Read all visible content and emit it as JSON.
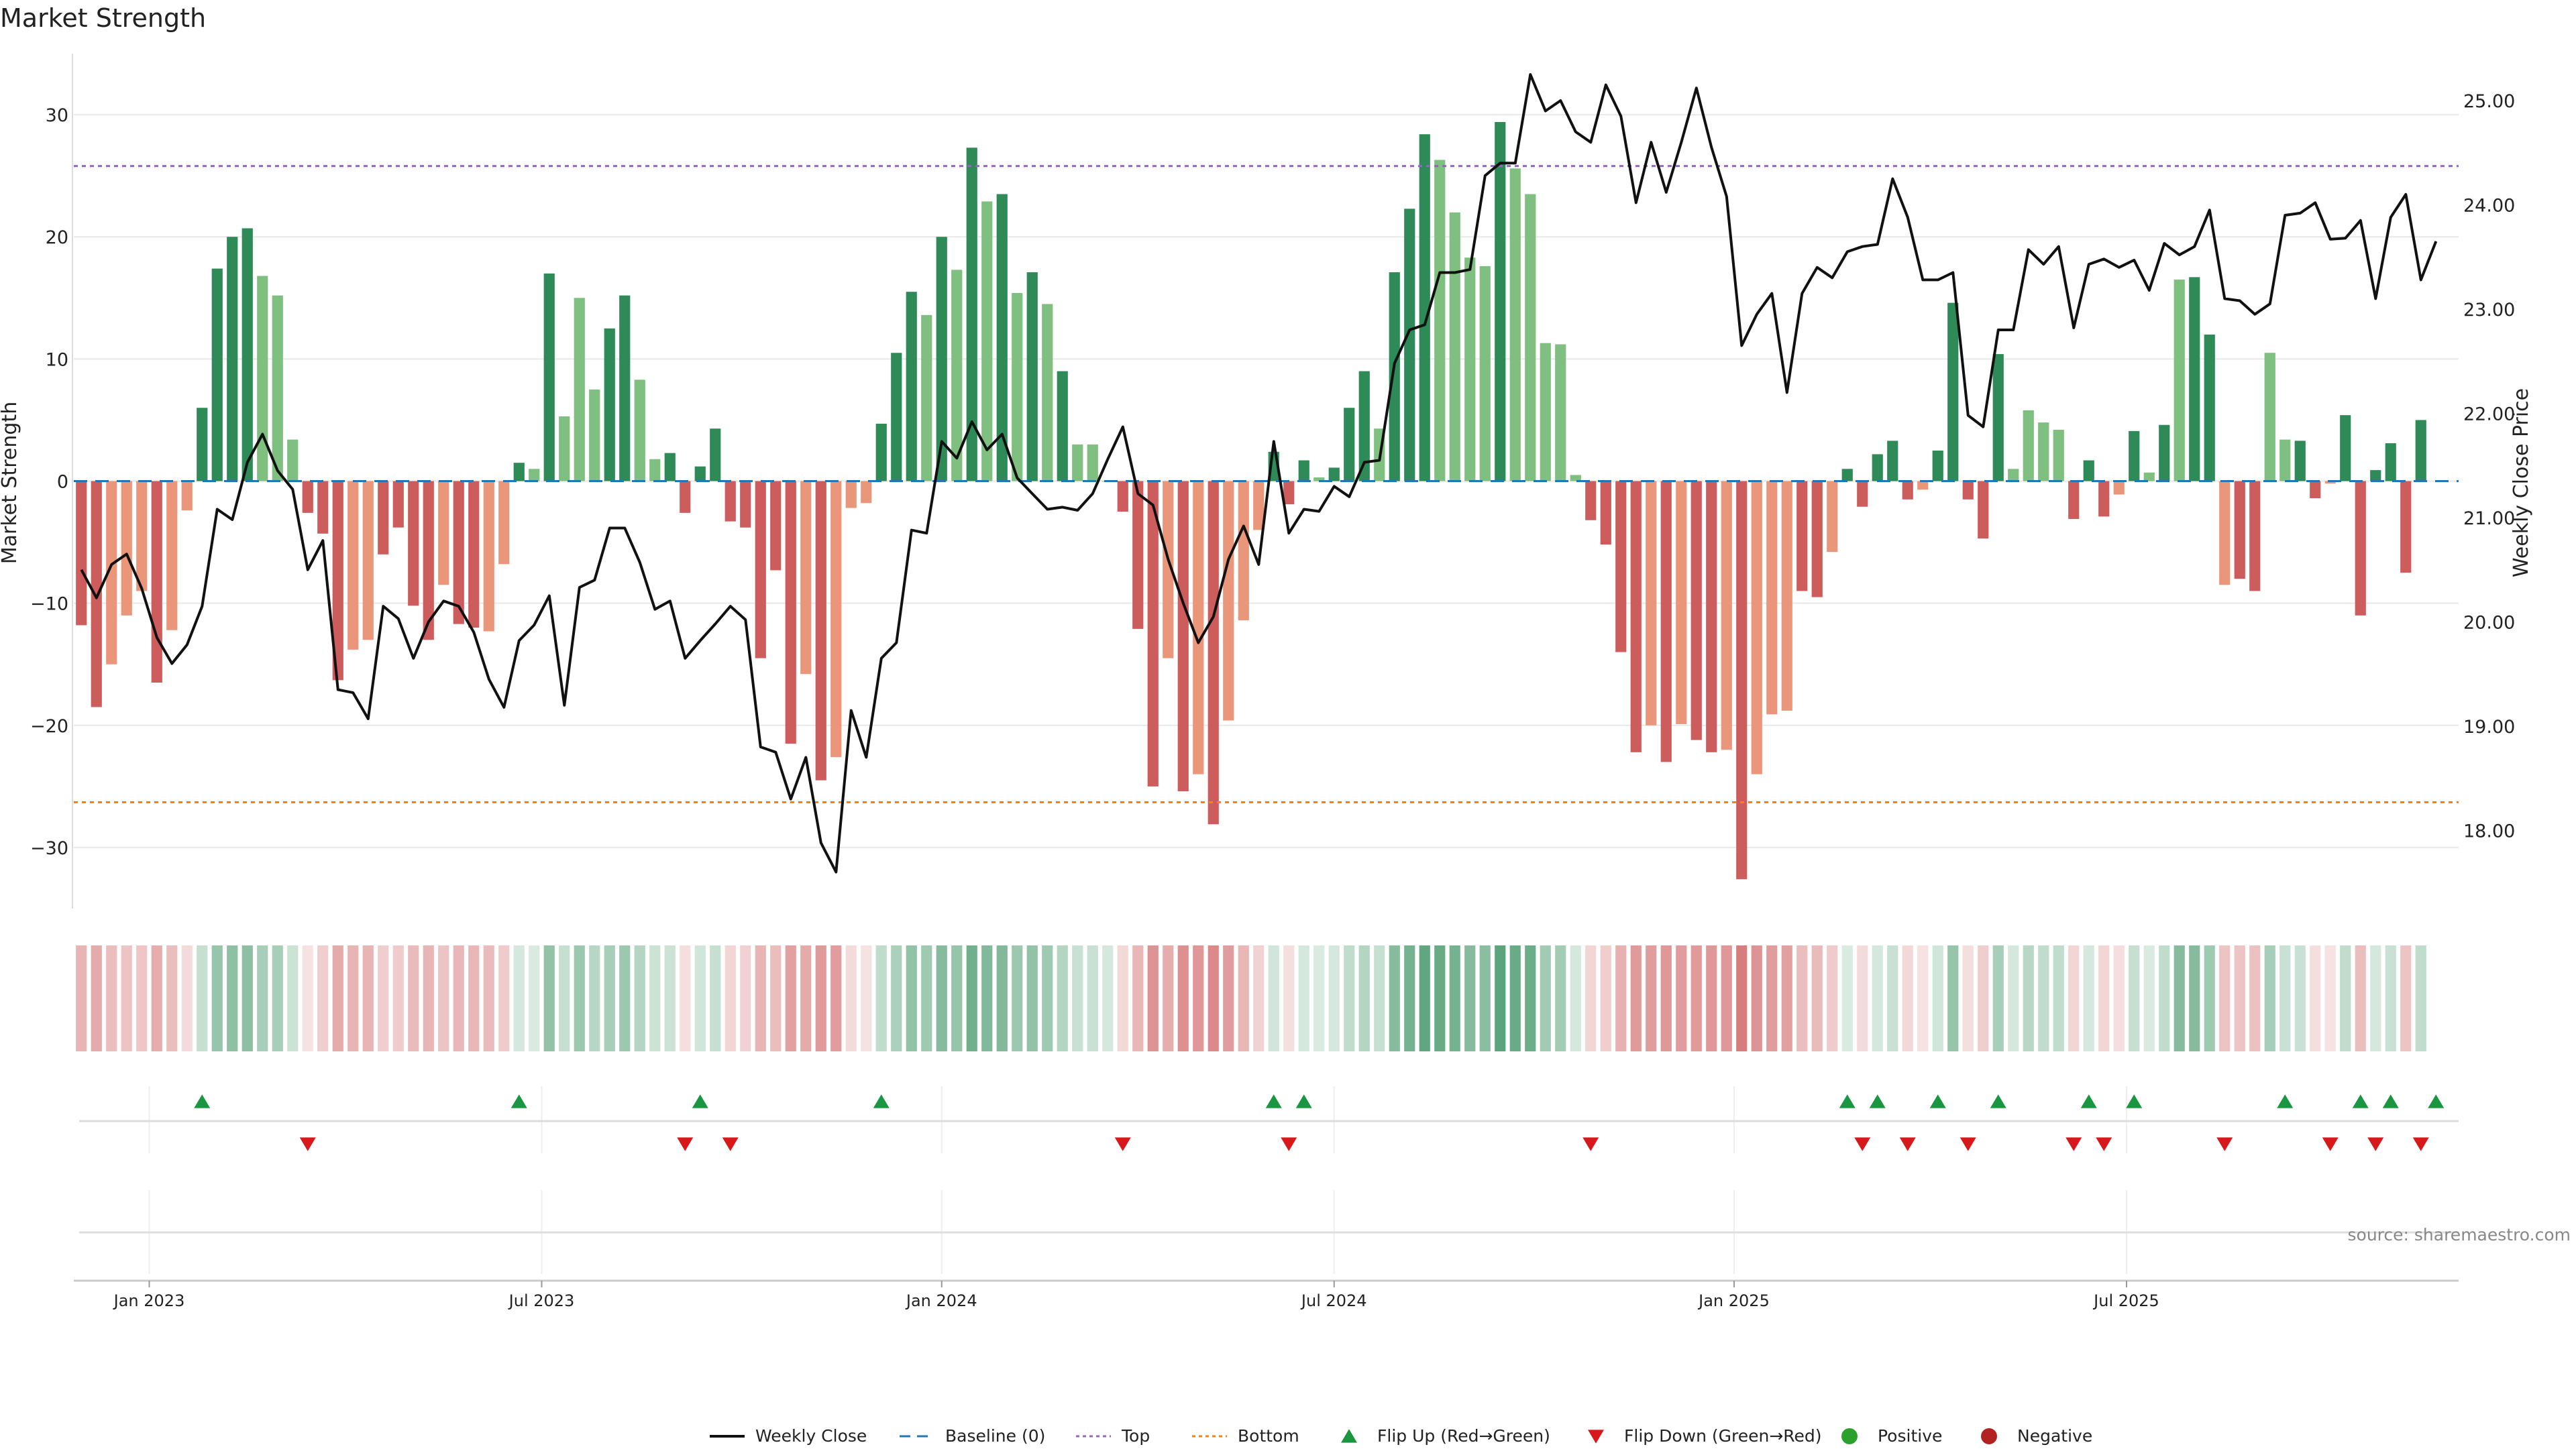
{
  "title": "Market Strength",
  "source": "source: sharemaestro.com",
  "colors": {
    "strong_green": "#2e8b57",
    "light_green": "#7fbf7f",
    "strong_red": "#cd5c5c",
    "light_red": "#e9967a",
    "price_line": "#111111",
    "baseline": "#1f77b4",
    "top": "#9467bd",
    "bottom": "#ff7f0e",
    "flip_up": "#1a9641",
    "flip_down": "#d7191c",
    "positive_dot": "#2ca02c",
    "negative_dot": "#b22222"
  },
  "chart_data": {
    "type": "bar",
    "title": "Market Strength",
    "ylabel": "Market Strength",
    "y2label": "Weekly Close Price",
    "ylim": [
      -35,
      35
    ],
    "y2lim": [
      17.25,
      25.45
    ],
    "yticks": [
      30,
      20,
      10,
      0,
      -10,
      -20,
      -30
    ],
    "yticklabels": [
      "30",
      "20",
      "10",
      "0",
      "−10",
      "−20",
      "−30"
    ],
    "y2ticks": [
      25,
      24,
      23,
      22,
      21,
      20,
      19,
      18
    ],
    "y2ticklabels": [
      "25.00",
      "24.00",
      "23.00",
      "22.00",
      "21.00",
      "20.00",
      "19.00",
      "18.00"
    ],
    "x_start": "2022-11-28",
    "week_count": 158,
    "x_ticks": [
      {
        "week": 5,
        "label": "Jan 2023"
      },
      {
        "week": 31,
        "label": "Jul 2023"
      },
      {
        "week": 57.5,
        "label": "Jan 2024"
      },
      {
        "week": 83.5,
        "label": "Jul 2024"
      },
      {
        "week": 110,
        "label": "Jan 2025"
      },
      {
        "week": 136,
        "label": "Jul 2025"
      }
    ],
    "top_level": 25.8,
    "bottom_level": -26.3,
    "strength": [
      -11.8,
      -18.5,
      -15,
      -11,
      -9,
      -16.5,
      -12.2,
      -2.4,
      6,
      17.4,
      20,
      20.7,
      16.8,
      15.2,
      3.4,
      -2.6,
      -4.3,
      -16.3,
      -13.8,
      -13,
      -6,
      -3.8,
      -10.2,
      -13,
      -8.5,
      -11.7,
      -12,
      -12.3,
      -6.8,
      1.5,
      1,
      17,
      5.3,
      15,
      7.5,
      12.5,
      15.2,
      8.3,
      1.8,
      2.3,
      -2.6,
      1.2,
      4.3,
      -3.3,
      -3.8,
      -14.5,
      -7.3,
      -21.5,
      -15.8,
      -24.5,
      -22.6,
      -2.2,
      -1.8,
      4.7,
      10.5,
      15.5,
      13.6,
      20,
      17.3,
      27.3,
      22.9,
      23.5,
      15.4,
      17.1,
      14.5,
      9,
      3,
      3,
      0,
      -2.5,
      -12.1,
      -25,
      -14.5,
      -25.4,
      -24,
      -28.1,
      -19.6,
      -11.4,
      -4,
      2.4,
      -1.9,
      1.7,
      0.3,
      1.1,
      6,
      9,
      4.3,
      17.1,
      22.3,
      28.4,
      26.3,
      22,
      18.3,
      17.6,
      29.4,
      25.6,
      23.5,
      11.3,
      11.2,
      0.5,
      -3.2,
      -5.2,
      -14,
      -22.2,
      -20,
      -23,
      -19.9,
      -21.2,
      -22.2,
      -22,
      -32.6,
      -24,
      -19.1,
      -18.8,
      -9,
      -9.5,
      -5.8,
      1,
      -2.1,
      2.2,
      3.3,
      -1.5,
      -0.7,
      2.5,
      14.6,
      -1.5,
      -4.7,
      10.4,
      1,
      5.8,
      4.8,
      4.2,
      -3.1,
      1.7,
      -2.9,
      -1.1,
      4.1,
      0.7,
      4.6,
      16.5,
      16.7,
      12,
      -8.5,
      -8,
      -9,
      10.5,
      3.4,
      3.3,
      -1.4,
      -0.2,
      5.4,
      -11,
      0.9,
      3.1,
      -7.5,
      5
    ],
    "strength_shade": [
      "strong",
      "strong",
      "light",
      "light",
      "light",
      "strong",
      "light",
      "light",
      "strong",
      "strong",
      "strong",
      "strong",
      "light",
      "light",
      "light",
      "strong",
      "strong",
      "strong",
      "light",
      "light",
      "strong",
      "strong",
      "strong",
      "strong",
      "light",
      "strong",
      "strong",
      "light",
      "light",
      "strong",
      "light",
      "strong",
      "light",
      "light",
      "light",
      "strong",
      "strong",
      "light",
      "light",
      "strong",
      "strong",
      "strong",
      "strong",
      "strong",
      "strong",
      "strong",
      "strong",
      "strong",
      "light",
      "strong",
      "light",
      "light",
      "light",
      "strong",
      "strong",
      "strong",
      "light",
      "strong",
      "light",
      "strong",
      "light",
      "strong",
      "light",
      "strong",
      "light",
      "strong",
      "light",
      "light",
      "light",
      "strong",
      "strong",
      "strong",
      "light",
      "strong",
      "light",
      "strong",
      "light",
      "light",
      "light",
      "strong",
      "strong",
      "strong",
      "light",
      "strong",
      "strong",
      "strong",
      "light",
      "strong",
      "strong",
      "strong",
      "light",
      "light",
      "light",
      "light",
      "strong",
      "light",
      "light",
      "light",
      "light",
      "light",
      "strong",
      "strong",
      "strong",
      "strong",
      "light",
      "strong",
      "light",
      "strong",
      "strong",
      "light",
      "strong",
      "light",
      "light",
      "light",
      "strong",
      "strong",
      "light",
      "strong",
      "strong",
      "strong",
      "strong",
      "strong",
      "light",
      "strong",
      "strong",
      "strong",
      "strong",
      "strong",
      "light",
      "light",
      "light",
      "light",
      "strong",
      "strong",
      "strong",
      "light",
      "strong",
      "light",
      "strong",
      "light",
      "strong",
      "strong",
      "light",
      "strong",
      "strong",
      "light",
      "light",
      "strong",
      "strong",
      "light",
      "strong",
      "strong",
      "strong",
      "strong",
      "strong",
      "strong",
      "strong"
    ],
    "price": [
      20.5,
      20.23,
      20.55,
      20.65,
      20.32,
      19.85,
      19.6,
      19.78,
      20.15,
      21.08,
      20.98,
      21.53,
      21.8,
      21.45,
      21.27,
      20.5,
      20.78,
      19.35,
      19.32,
      19.07,
      20.15,
      20.03,
      19.65,
      20,
      20.2,
      20.15,
      19.9,
      19.45,
      19.18,
      19.82,
      19.97,
      20.25,
      19.2,
      20.33,
      20.4,
      20.9,
      20.9,
      20.57,
      20.12,
      20.2,
      19.65,
      19.82,
      19.98,
      20.15,
      20.02,
      18.8,
      18.75,
      18.3,
      18.7,
      17.88,
      17.6,
      19.15,
      18.7,
      19.65,
      19.8,
      20.88,
      20.85,
      21.73,
      21.57,
      21.92,
      21.65,
      21.8,
      21.38,
      21.23,
      21.08,
      21.1,
      21.07,
      21.23,
      21.56,
      21.87,
      21.23,
      21.12,
      20.6,
      20.18,
      19.8,
      20.05,
      20.6,
      20.92,
      20.55,
      21.73,
      20.85,
      21.08,
      21.06,
      21.3,
      21.2,
      21.53,
      21.55,
      22.48,
      22.8,
      22.85,
      23.35,
      23.35,
      23.38,
      24.28,
      24.4,
      24.4,
      25.25,
      24.9,
      25,
      24.7,
      24.6,
      25.15,
      24.85,
      24.02,
      24.6,
      24.12,
      24.6,
      25.12,
      24.55,
      24.08,
      22.65,
      22.95,
      23.15,
      22.2,
      23.15,
      23.4,
      23.3,
      23.55,
      23.6,
      23.62,
      24.25,
      23.88,
      23.28,
      23.28,
      23.35,
      21.98,
      21.87,
      22.8,
      22.8,
      23.57,
      23.43,
      23.6,
      22.82,
      23.43,
      23.48,
      23.4,
      23.47,
      23.18,
      23.63,
      23.52,
      23.6,
      23.95,
      23.1,
      23.08,
      22.95,
      23.05,
      23.9,
      23.92,
      24.02,
      23.67,
      23.68,
      23.85,
      23.1,
      23.88,
      24.1,
      23.28,
      23.65
    ],
    "heat_levels": [
      0.45,
      0.52,
      0.4,
      0.36,
      0.35,
      0.5,
      0.4,
      0.22,
      0.28,
      0.5,
      0.54,
      0.55,
      0.42,
      0.42,
      0.25,
      0.18,
      0.3,
      0.52,
      0.45,
      0.45,
      0.3,
      0.32,
      0.42,
      0.45,
      0.36,
      0.44,
      0.44,
      0.42,
      0.32,
      0.2,
      0.18,
      0.52,
      0.28,
      0.48,
      0.35,
      0.42,
      0.48,
      0.36,
      0.25,
      0.25,
      0.2,
      0.22,
      0.28,
      0.26,
      0.28,
      0.46,
      0.4,
      0.58,
      0.52,
      0.62,
      0.6,
      0.22,
      0.18,
      0.3,
      0.4,
      0.52,
      0.46,
      0.58,
      0.5,
      0.68,
      0.6,
      0.6,
      0.48,
      0.52,
      0.46,
      0.36,
      0.26,
      0.26,
      0.2,
      0.24,
      0.44,
      0.66,
      0.5,
      0.68,
      0.64,
      0.72,
      0.6,
      0.44,
      0.28,
      0.22,
      0.2,
      0.2,
      0.18,
      0.2,
      0.3,
      0.36,
      0.28,
      0.58,
      0.66,
      0.76,
      0.72,
      0.66,
      0.58,
      0.56,
      0.78,
      0.72,
      0.7,
      0.45,
      0.44,
      0.2,
      0.26,
      0.3,
      0.48,
      0.62,
      0.6,
      0.64,
      0.6,
      0.62,
      0.64,
      0.64,
      0.8,
      0.66,
      0.6,
      0.58,
      0.4,
      0.42,
      0.32,
      0.18,
      0.22,
      0.2,
      0.26,
      0.24,
      0.18,
      0.22,
      0.5,
      0.2,
      0.3,
      0.42,
      0.2,
      0.34,
      0.3,
      0.3,
      0.26,
      0.2,
      0.26,
      0.2,
      0.28,
      0.18,
      0.3,
      0.58,
      0.58,
      0.46,
      0.36,
      0.36,
      0.38,
      0.42,
      0.26,
      0.26,
      0.2,
      0.18,
      0.3,
      0.4,
      0.2,
      0.26,
      0.36,
      0.3
    ],
    "flip_up_weeks": [
      8,
      29,
      41,
      53,
      79,
      81,
      117,
      119,
      123,
      127,
      133,
      136,
      146,
      151,
      153,
      156
    ],
    "flip_down_weeks": [
      15,
      40,
      43,
      69,
      80,
      100,
      118,
      121,
      125,
      132,
      134,
      142,
      149,
      152,
      155
    ],
    "flip_up_rows": [
      "up",
      "up",
      "up",
      "up",
      "up",
      "up",
      "up",
      "up",
      "up",
      "up",
      "up",
      "up",
      "up",
      "up",
      "up",
      "up"
    ],
    "legend": [
      {
        "key": "weekly_close",
        "label": "Weekly Close"
      },
      {
        "key": "baseline",
        "label": "Baseline (0)"
      },
      {
        "key": "top",
        "label": "Top"
      },
      {
        "key": "bottom",
        "label": "Bottom"
      },
      {
        "key": "flip_up",
        "label": "Flip Up (Red→Green)"
      },
      {
        "key": "flip_down",
        "label": "Flip Down (Green→Red)"
      },
      {
        "key": "positive",
        "label": "Positive"
      },
      {
        "key": "negative",
        "label": "Negative"
      }
    ]
  }
}
